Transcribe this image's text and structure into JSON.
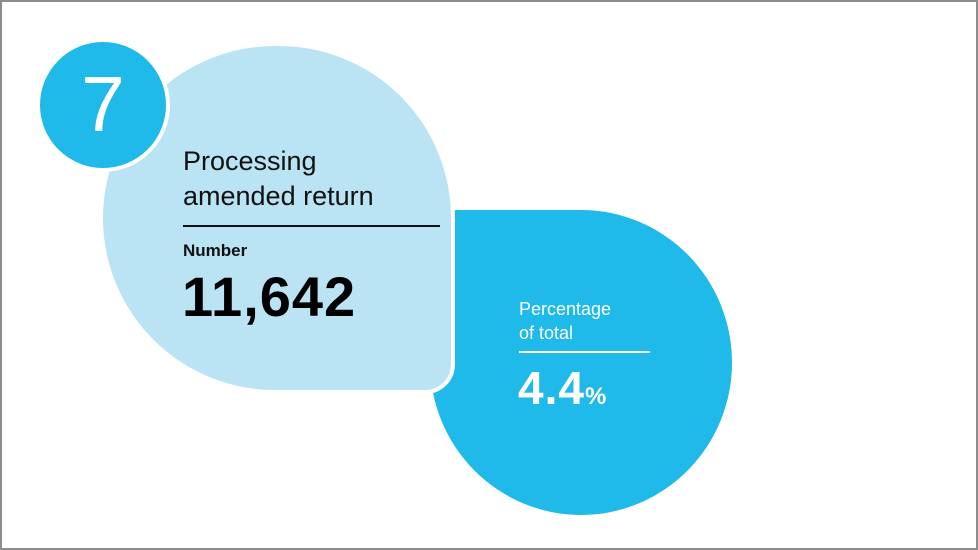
{
  "badge": {
    "number": "7"
  },
  "card": {
    "title_line1": "Processing",
    "title_line2": "amended return",
    "number_label": "Number",
    "number_value": "11,642",
    "pct_label_line1": "Percentage",
    "pct_label_line2": "of total",
    "pct_value": "4.4",
    "pct_unit": "%"
  },
  "colors": {
    "dark_blue": "#1fbaea",
    "light_blue": "#bae4f4",
    "border": "#8c8c8c"
  }
}
